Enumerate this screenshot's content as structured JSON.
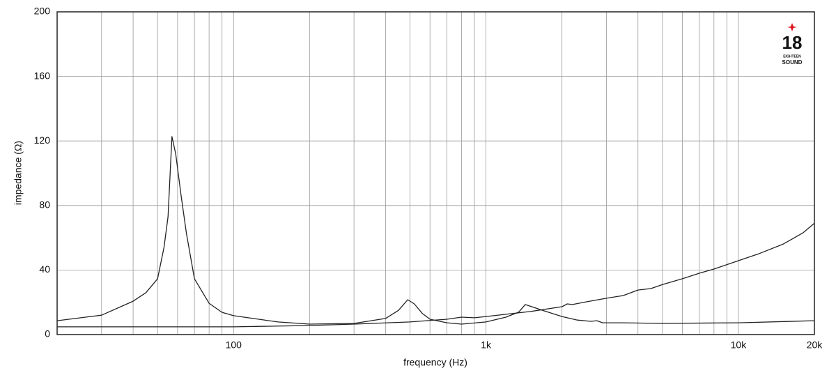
{
  "chart_data": {
    "type": "line",
    "x_label": "frequency (Hz)",
    "y_label": "impedance (Ω)",
    "logo": {
      "number": "18",
      "top": "EIGHTEEN",
      "bottom": "SOUND"
    },
    "xlog": true,
    "xlim": [
      20,
      20000
    ],
    "ylim": [
      0,
      200
    ],
    "xticks": [
      100,
      {
        "value": 1000,
        "label": "1k"
      },
      {
        "value": 10000,
        "label": "10k"
      },
      {
        "value": 20000,
        "label": "20k"
      }
    ],
    "x_minor_grid": [
      30,
      40,
      50,
      60,
      70,
      80,
      90,
      200,
      300,
      400,
      500,
      600,
      700,
      800,
      900,
      2000,
      3000,
      4000,
      5000,
      6000,
      7000,
      8000,
      9000
    ],
    "yticks": [
      0,
      40,
      80,
      120,
      160,
      200
    ],
    "grid": true,
    "series": [
      {
        "color": "#222222",
        "x": [
          20,
          30,
          40,
          45,
          50,
          53,
          55,
          57,
          59,
          62,
          65,
          70,
          80,
          90,
          100,
          150,
          200,
          300,
          400,
          450,
          490,
          520,
          560,
          600,
          700,
          800,
          1000,
          1200,
          1350,
          1430,
          1550,
          1700,
          2000,
          2300,
          2600,
          2750,
          2900,
          3500,
          5000,
          10000,
          20000
        ],
        "values": [
          8.6,
          12,
          20.7,
          26,
          34.6,
          54,
          73,
          122.7,
          112,
          86,
          63,
          34.6,
          19.4,
          13.8,
          11.7,
          7.8,
          6.5,
          6.9,
          10,
          15,
          21.6,
          19,
          13,
          9.5,
          7.3,
          6.5,
          7.8,
          10.8,
          14,
          18.6,
          16.8,
          14.7,
          11.2,
          9,
          8.2,
          8.6,
          7.3,
          7.3,
          6.9,
          7.3,
          8.6
        ]
      },
      {
        "color": "#222222",
        "x": [
          20,
          100,
          200,
          300,
          500,
          700,
          800,
          900,
          1000,
          1500,
          2000,
          2100,
          2200,
          2500,
          3000,
          3500,
          4000,
          4500,
          5000,
          6000,
          7000,
          8000,
          10000,
          12000,
          15000,
          18000,
          20000
        ],
        "values": [
          4.8,
          4.8,
          5.6,
          6.5,
          7.8,
          9.5,
          10.8,
          10.4,
          11.2,
          14.3,
          17.3,
          19,
          18.6,
          20.3,
          22.5,
          24.2,
          27.6,
          28.5,
          31,
          34.6,
          38,
          40.6,
          45.8,
          50,
          56,
          63,
          69
        ]
      }
    ]
  }
}
